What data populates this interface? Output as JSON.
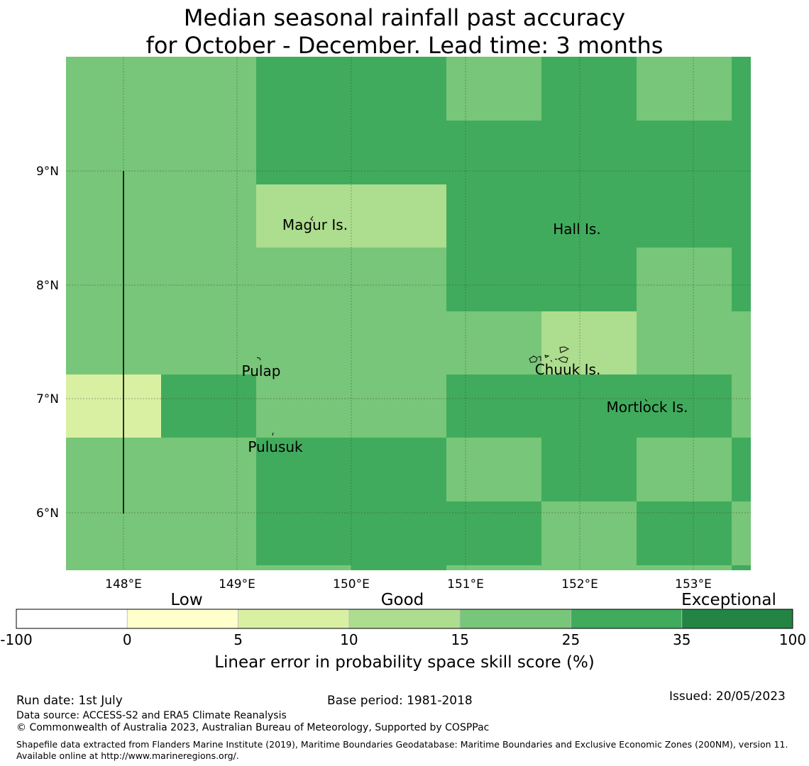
{
  "title_line1": "Median seasonal rainfall past accuracy",
  "title_line2": "for October - December. Lead time: 3 months",
  "map": {
    "lon_range": [
      147.5,
      153.5
    ],
    "lat_range": [
      5.5,
      10.0
    ],
    "x_ticks": [
      "148°E",
      "149°E",
      "150°E",
      "151°E",
      "152°E",
      "153°E"
    ],
    "y_ticks": [
      "9°N",
      "8°N",
      "7°N",
      "6°N"
    ],
    "places": [
      {
        "name": "Magur Is.",
        "lon": 149.92,
        "lat": 8.53
      },
      {
        "name": "Hall Is.",
        "lon": 151.97,
        "lat": 8.49
      },
      {
        "name": "Pulap",
        "lon": 149.21,
        "lat": 7.21
      },
      {
        "name": "Chuuk Is.",
        "lon": 151.9,
        "lat": 7.23
      },
      {
        "name": "Mortlock Is.",
        "lon": 152.6,
        "lat": 6.91
      },
      {
        "name": "Pulusuk",
        "lon": 149.33,
        "lat": 6.56
      }
    ]
  },
  "colorbar": {
    "categories": [
      "Low",
      "Good",
      "Exceptional"
    ],
    "ticks": [
      "-100",
      "0",
      "5",
      "10",
      "15",
      "25",
      "35",
      "100"
    ],
    "colors": [
      "#ffffff",
      "#ffffcc",
      "#d9f0a3",
      "#addd8e",
      "#78c679",
      "#41ab5d",
      "#238443"
    ],
    "label": "Linear error in probability space skill score (%)"
  },
  "footer": {
    "run_date": "Run date: 1st July",
    "base_period": "Base period: 1981-2018",
    "issued": "Issued: 20/05/2023",
    "data_source": "Data source: ACCESS-S2 and ERA5 Climate Reanalysis",
    "copyright": "© Commonwealth of Australia 2023, Australian Bureau of Meteorology, Supported by COSPPac",
    "shapefile": "Shapefile data extracted from Flanders Marine Institute (2019), Maritime Boundaries Geodatabase: Maritime Boundaries and Exclusive Economic Zones (200NM), version 11. Available online at http://www.marineregions.org/."
  }
}
